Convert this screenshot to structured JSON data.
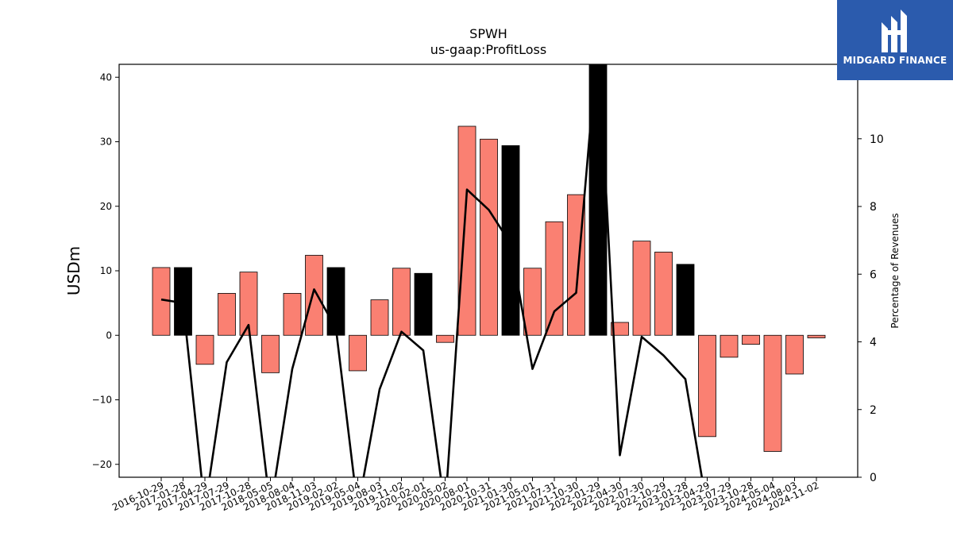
{
  "brand": {
    "name": "MIDGARD FINANCE",
    "background": "#2b5bad"
  },
  "chart_data": {
    "type": "bar",
    "title": "SPWH",
    "subtitle": "us-gaap:ProfitLoss",
    "ylabel": "USDm",
    "y2label": "Percentage of Revenues",
    "ylim": [
      -22,
      42
    ],
    "y2lim": [
      0,
      12.2
    ],
    "yticks": [
      -20,
      -10,
      0,
      10,
      20,
      30,
      40
    ],
    "y2ticks": [
      0,
      2,
      4,
      6,
      8,
      10
    ],
    "colors": {
      "quarter_bar": "#fa8072",
      "fiscal_year_bar": "#000000",
      "line": "#000000"
    },
    "categories": [
      "2016-10-29",
      "2017-01-28",
      "2017-04-29",
      "2017-07-29",
      "2017-10-28",
      "2018-05-05",
      "2018-08-04",
      "2018-11-03",
      "2019-02-02",
      "2019-05-04",
      "2019-08-03",
      "2019-11-02",
      "2020-02-01",
      "2020-05-02",
      "2020-08-01",
      "2020-10-31",
      "2021-01-30",
      "2021-05-01",
      "2021-07-31",
      "2021-10-30",
      "2022-01-29",
      "2022-04-30",
      "2022-07-30",
      "2022-10-29",
      "2023-01-28",
      "2023-04-29",
      "2023-07-29",
      "2023-10-28",
      "2024-05-04",
      "2024-08-03",
      "2024-11-02"
    ],
    "series": [
      {
        "values": [
          10.5,
          10.5,
          -4.5,
          6.5,
          9.8,
          -5.8,
          6.5,
          12.4,
          10.5,
          -5.5,
          5.5,
          10.4,
          9.6,
          -1.1,
          32.4,
          30.4,
          29.4,
          10.4,
          17.6,
          21.8,
          42.0,
          2.0,
          14.6,
          12.9,
          11.0,
          -15.7,
          -3.4,
          -1.4,
          -18.0,
          -6.0,
          -0.4
        ],
        "highlight": [
          false,
          true,
          false,
          false,
          false,
          false,
          false,
          false,
          true,
          false,
          false,
          false,
          true,
          false,
          false,
          false,
          true,
          false,
          false,
          false,
          true,
          false,
          false,
          false,
          true,
          false,
          false,
          false,
          false,
          false,
          false
        ]
      },
      {
        "axis": "right",
        "values": [
          5.25,
          5.15,
          null,
          3.4,
          4.5,
          null,
          3.2,
          5.55,
          4.4,
          null,
          2.6,
          4.3,
          3.75,
          null,
          8.5,
          7.9,
          6.9,
          3.2,
          4.9,
          5.45,
          13.0,
          0.65,
          4.15,
          3.6,
          2.9,
          null,
          null,
          null,
          null,
          null,
          null
        ]
      }
    ]
  }
}
